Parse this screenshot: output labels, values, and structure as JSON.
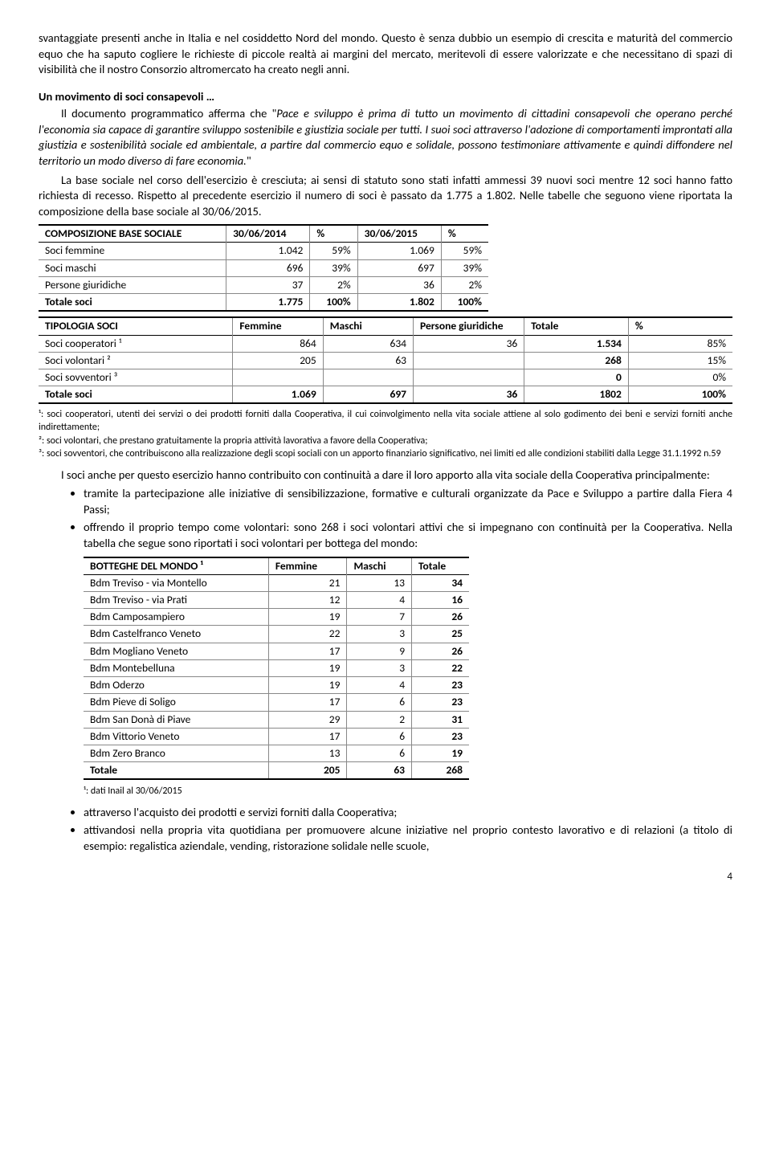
{
  "para_opening": "svantaggiate presenti anche in Italia e nel cosiddetto Nord del mondo. Questo è senza dubbio un esempio di crescita e maturità del commercio equo che ha saputo cogliere le richieste di piccole realtà ai margini del mercato, meritevoli di essere valorizzate e che necessitano di spazi di visibilità che il nostro Consorzio altromercato ha creato negli anni.",
  "section1_title": "Un movimento di soci consapevoli …",
  "section1_p1_a": "Il documento programmatico afferma che \"",
  "section1_p1_ital": "Pace e sviluppo è prima di tutto un movimento di cittadini consapevoli che operano perché l'economia sia capace di garantire sviluppo sostenibile e giustizia sociale per tutti. I suoi soci attraverso l'adozione di comportamenti improntati alla giustizia e sostenibilità sociale ed ambientale, a partire dal commercio equo e solidale, possono testimoniare attivamente e quindi diffondere nel territorio un modo diverso di fare economia.",
  "section1_p1_b": "\"",
  "section1_p2": "La base sociale nel corso dell'esercizio è cresciuta; ai sensi di statuto sono stati infatti ammessi 39 nuovi soci mentre 12 soci hanno fatto richiesta di recesso. Rispetto al precedente esercizio il numero di soci è passato da 1.775 a 1.802. Nelle tabelle che seguono viene riportata la composizione della base sociale al 30/06/2015.",
  "table1": {
    "header": [
      "COMPOSIZIONE BASE SOCIALE",
      "30/06/2014",
      "%",
      "30/06/2015",
      "%"
    ],
    "rows": [
      [
        "Soci femmine",
        "1.042",
        "59%",
        "1.069",
        "59%"
      ],
      [
        "Soci maschi",
        "696",
        "39%",
        "697",
        "39%"
      ],
      [
        "Persone giuridiche",
        "37",
        "2%",
        "36",
        "2%"
      ]
    ],
    "total": [
      "Totale soci",
      "1.775",
      "100%",
      "1.802",
      "100%"
    ]
  },
  "table2": {
    "header": [
      "TIPOLOGIA SOCI",
      "Femmine",
      "Maschi",
      "Persone giuridiche",
      "Totale",
      "%"
    ],
    "rows": [
      [
        "Soci cooperatori ¹",
        "864",
        "634",
        "36",
        "1.534",
        "85%"
      ],
      [
        "Soci volontari ²",
        "205",
        "63",
        "",
        "268",
        "15%"
      ],
      [
        "Soci sovventori ³",
        "",
        "",
        "",
        "0",
        "0%"
      ]
    ],
    "total": [
      "Totale soci",
      "1.069",
      "697",
      "36",
      "1802",
      "100%"
    ]
  },
  "footnotes2": {
    "f1": "¹: soci cooperatori, utenti dei servizi o dei prodotti forniti dalla Cooperativa, il cui coinvolgimento nella vita sociale attiene al solo godimento dei beni e servizi forniti anche indirettamente;",
    "f2": "²: soci volontari, che prestano gratuitamente la propria attività lavorativa a favore della Cooperativa;",
    "f3": "³: soci sovventori, che contribuiscono alla realizzazione degli scopi sociali con un apporto finanziario significativo, nei limiti ed alle condizioni stabiliti dalla Legge 31.1.1992 n.59"
  },
  "para_after_t2": "I soci anche per questo esercizio hanno contribuito con continuità a dare il loro apporto alla vita sociale della Cooperativa principalmente:",
  "bullets1": {
    "b1": "tramite la partecipazione alle iniziative di sensibilizzazione, formative e culturali organizzate da Pace e Sviluppo a partire dalla Fiera 4 Passi;",
    "b2": "offrendo il proprio tempo come volontari: sono 268 i soci volontari attivi che si impegnano con continuità per la Cooperativa. Nella tabella che segue sono riportati i soci volontari per bottega del mondo:"
  },
  "table3": {
    "header": [
      "BOTTEGHE DEL MONDO ¹",
      "Femmine",
      "Maschi",
      "Totale"
    ],
    "rows": [
      [
        "Bdm Treviso - via Montello",
        "21",
        "13",
        "34"
      ],
      [
        "Bdm Treviso - via Prati",
        "12",
        "4",
        "16"
      ],
      [
        "Bdm Camposampiero",
        "19",
        "7",
        "26"
      ],
      [
        "Bdm Castelfranco Veneto",
        "22",
        "3",
        "25"
      ],
      [
        "Bdm Mogliano Veneto",
        "17",
        "9",
        "26"
      ],
      [
        "Bdm Montebelluna",
        "19",
        "3",
        "22"
      ],
      [
        "Bdm Oderzo",
        "19",
        "4",
        "23"
      ],
      [
        "Bdm Pieve di Soligo",
        "17",
        "6",
        "23"
      ],
      [
        "Bdm San Donà di Piave",
        "29",
        "2",
        "31"
      ],
      [
        "Bdm Vittorio Veneto",
        "17",
        "6",
        "23"
      ],
      [
        "Bdm Zero Branco",
        "13",
        "6",
        "19"
      ]
    ],
    "total": [
      "Totale",
      "205",
      "63",
      "268"
    ]
  },
  "footnote3": "¹: dati Inail al 30/06/2015",
  "bullets2": {
    "b1": "attraverso l'acquisto dei prodotti e servizi forniti dalla Cooperativa;",
    "b2": "attivandosi nella propria vita quotidiana per promuovere alcune iniziative nel proprio contesto lavorativo e di relazioni (a titolo di esempio: regalistica aziendale, vending, ristorazione solidale nelle scuole,"
  },
  "page_number": "4"
}
